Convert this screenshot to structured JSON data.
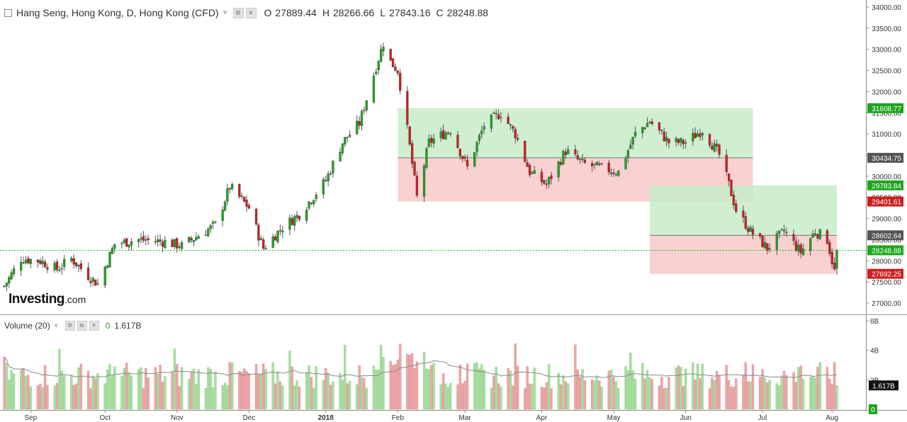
{
  "header": {
    "symbol": "Hang Seng, Hong Kong, D, Hong Kong (CFD)",
    "open_label": "O",
    "open": "27889.44",
    "high_label": "H",
    "high": "28266.66",
    "low_label": "L",
    "low": "27843.16",
    "close_label": "C",
    "close": "28248.88"
  },
  "volume_header": {
    "label": "Volume (20)",
    "value_zero": "0",
    "value": "1.617B"
  },
  "logo": {
    "brand": "Investing",
    "suffix": ".com"
  },
  "colors": {
    "up": "#1fa51f",
    "down": "#cc1f1f",
    "vol_up": "#a8dfa0",
    "vol_down": "#eda6a6",
    "target_zone": "#c8ebc8",
    "stop_zone": "#f8c6c6",
    "current_line": "#22bb22"
  },
  "chart_data": {
    "type": "candlestick",
    "price_ylim": [
      26800,
      34100
    ],
    "price_ticks": [
      "34000.00",
      "33500.00",
      "33000.00",
      "32500.00",
      "32000.00",
      "31500.00",
      "31000.00",
      "30500.00",
      "30000.00",
      "29500.00",
      "29000.00",
      "28500.00",
      "28000.00",
      "27500.00",
      "27000.00"
    ],
    "volume_ylim": [
      0,
      6
    ],
    "volume_ticks": [
      "6B",
      "4B",
      "2B"
    ],
    "x_labels": [
      "Sep",
      "Oct",
      "Nov",
      "Dec",
      "2018",
      "Feb",
      "Mar",
      "Apr",
      "May",
      "Jun",
      "Jul",
      "Aug"
    ],
    "date_range": [
      "2017-08-21",
      "2018-08-03"
    ],
    "price_labels": [
      {
        "text": "31608.77",
        "value": 31608.77,
        "color": "#1fa51f"
      },
      {
        "text": "30434.75",
        "value": 30434.75,
        "color": "#555555"
      },
      {
        "text": "29783.84",
        "value": 29783.84,
        "color": "#1fa51f"
      },
      {
        "text": "29401.61",
        "value": 29401.61,
        "color": "#cc1f1f"
      },
      {
        "text": "28602.64",
        "value": 28602.64,
        "color": "#555555"
      },
      {
        "text": "28248.88",
        "value": 28248.88,
        "color": "#1fa51f"
      },
      {
        "text": "27692.25",
        "value": 27692.25,
        "color": "#cc1f1f"
      }
    ],
    "volume_labels": [
      {
        "text": "1.617B",
        "value": 1.617,
        "color": "#111111"
      },
      {
        "text": "0",
        "value": 0,
        "color": "#1fa51f"
      }
    ],
    "current_price": 28248.88,
    "positions": [
      {
        "start": "2018-02-01",
        "end": "2018-06-29",
        "entry": 30434.75,
        "target": 31608.77,
        "stop": 29401.61
      },
      {
        "start": "2018-05-17",
        "end": "2018-08-03",
        "entry": 28602.64,
        "target": 29783.84,
        "stop": 27692.25
      }
    ],
    "anchors": [
      [
        "2017-08-21",
        27400
      ],
      [
        "2017-08-28",
        28050
      ],
      [
        "2017-09-05",
        28000
      ],
      [
        "2017-09-12",
        27800
      ],
      [
        "2017-09-18",
        28050
      ],
      [
        "2017-09-25",
        27650
      ],
      [
        "2017-09-29",
        27450
      ],
      [
        "2017-10-06",
        28400
      ],
      [
        "2017-10-16",
        28500
      ],
      [
        "2017-10-27",
        28450
      ],
      [
        "2017-11-03",
        28350
      ],
      [
        "2017-11-10",
        28600
      ],
      [
        "2017-11-17",
        28850
      ],
      [
        "2017-11-23",
        29750
      ],
      [
        "2017-12-01",
        29250
      ],
      [
        "2017-12-05",
        28600
      ],
      [
        "2017-12-07",
        28300
      ],
      [
        "2017-12-15",
        28800
      ],
      [
        "2017-12-22",
        29100
      ],
      [
        "2018-01-02",
        29900
      ],
      [
        "2018-01-09",
        30800
      ],
      [
        "2018-01-16",
        31250
      ],
      [
        "2018-01-23",
        32600
      ],
      [
        "2018-01-26",
        33150
      ],
      [
        "2018-01-29",
        32700
      ],
      [
        "2018-02-01",
        32500
      ],
      [
        "2018-02-05",
        31100
      ],
      [
        "2018-02-09",
        29500
      ],
      [
        "2018-02-14",
        30800
      ],
      [
        "2018-02-23",
        31100
      ],
      [
        "2018-03-02",
        30200
      ],
      [
        "2018-03-09",
        31200
      ],
      [
        "2018-03-16",
        31500
      ],
      [
        "2018-03-22",
        31000
      ],
      [
        "2018-03-28",
        30100
      ],
      [
        "2018-04-04",
        29800
      ],
      [
        "2018-04-12",
        30600
      ],
      [
        "2018-04-19",
        30300
      ],
      [
        "2018-04-26",
        30200
      ],
      [
        "2018-05-04",
        30100
      ],
      [
        "2018-05-11",
        31000
      ],
      [
        "2018-05-17",
        31300
      ],
      [
        "2018-05-25",
        30800
      ],
      [
        "2018-06-01",
        30800
      ],
      [
        "2018-06-08",
        31100
      ],
      [
        "2018-06-15",
        30500
      ],
      [
        "2018-06-19",
        29800
      ],
      [
        "2018-06-22",
        29200
      ],
      [
        "2018-06-28",
        28700
      ],
      [
        "2018-07-05",
        28300
      ],
      [
        "2018-07-12",
        28700
      ],
      [
        "2018-07-19",
        28200
      ],
      [
        "2018-07-25",
        28700
      ],
      [
        "2018-07-30",
        28500
      ],
      [
        "2018-08-02",
        27750
      ],
      [
        "2018-08-03",
        28249
      ]
    ]
  }
}
